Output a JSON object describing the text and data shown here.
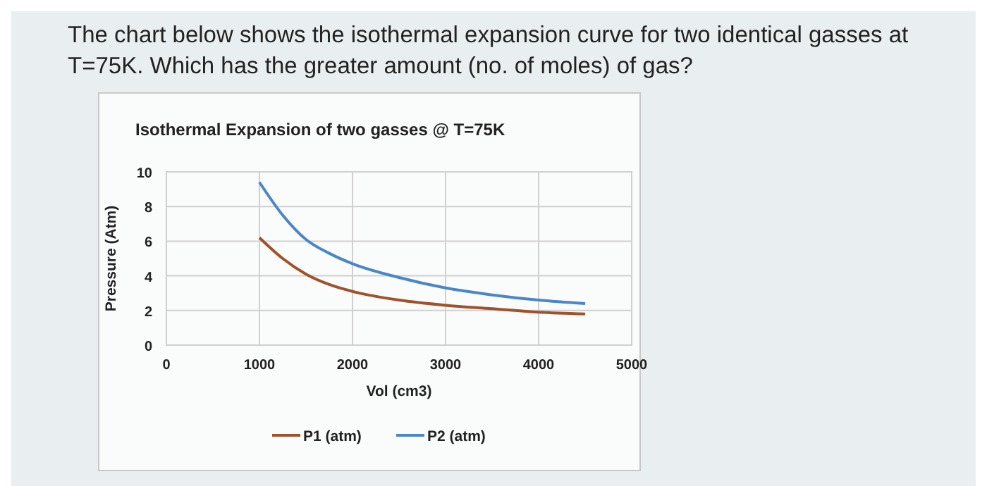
{
  "chart_data": {
    "type": "line",
    "title": "Isothermal Expansion of two gasses @ T=75K",
    "xlabel": "Vol (cm3)",
    "ylabel": "Pressure (Atm)",
    "annotations": [
      "The chart below shows the isothermal expansion curve for two identical gasses at T=75K.  Which has the greater amount (no. of moles) of gas?"
    ],
    "x": [
      1000,
      1250,
      1500,
      1750,
      2000,
      2500,
      3000,
      3500,
      4000,
      4500
    ],
    "series": [
      {
        "name": "P1 (atm)",
        "color": "#a0522d",
        "values": [
          6.2,
          5.0,
          4.1,
          3.5,
          3.1,
          2.6,
          2.3,
          2.1,
          1.9,
          1.8
        ]
      },
      {
        "name": "P2 (atm)",
        "color": "#4a86c8",
        "values": [
          9.4,
          7.5,
          6.1,
          5.3,
          4.7,
          3.9,
          3.3,
          2.9,
          2.6,
          2.4
        ]
      }
    ],
    "xlim": [
      0,
      5000
    ],
    "xticks": [
      0,
      1000,
      2000,
      3000,
      4000,
      5000
    ],
    "ylim": [
      0,
      10
    ],
    "yticks": [
      0,
      2,
      4,
      6,
      8,
      10
    ],
    "grid": true,
    "legend": "bottom",
    "marker": "none",
    "line_style": "solid"
  }
}
